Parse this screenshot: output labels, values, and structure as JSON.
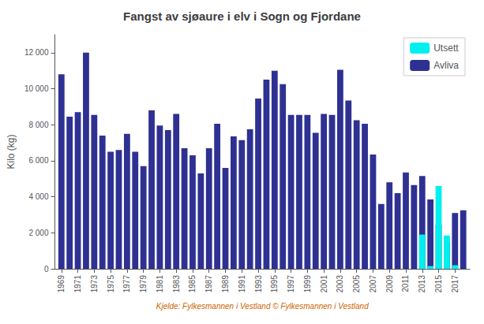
{
  "chart_data": {
    "type": "bar",
    "title": "Fangst av sjøaure i elv i Sogn og Fjordane",
    "xlabel": "Kjelde: Fylkesmannen i Vestland © Fylkesmannen i Vestland",
    "ylabel": "Kilo (kg)",
    "x": [
      1969,
      1970,
      1971,
      1972,
      1973,
      1974,
      1975,
      1976,
      1977,
      1978,
      1979,
      1980,
      1981,
      1982,
      1983,
      1984,
      1985,
      1986,
      1987,
      1988,
      1989,
      1990,
      1991,
      1992,
      1993,
      1994,
      1995,
      1996,
      1997,
      1998,
      1999,
      2000,
      2001,
      2002,
      2003,
      2004,
      2005,
      2006,
      2007,
      2008,
      2009,
      2010,
      2011,
      2012,
      2013,
      2014,
      2015,
      2016,
      2017,
      2018
    ],
    "series": [
      {
        "name": "Avliva",
        "color": "#2E3192",
        "values": [
          10800,
          8450,
          8700,
          12000,
          8550,
          7400,
          6500,
          6600,
          7500,
          6500,
          5700,
          8800,
          7950,
          7700,
          8600,
          6700,
          6300,
          5300,
          6700,
          8050,
          5600,
          7350,
          7150,
          7750,
          9450,
          10500,
          11000,
          10250,
          8550,
          8550,
          8550,
          7550,
          8600,
          8550,
          11050,
          9350,
          8250,
          8050,
          6350,
          3600,
          4800,
          4200,
          5350,
          4650,
          5150,
          3850,
          2450,
          1500,
          3100,
          3250
        ]
      },
      {
        "name": "Utsett",
        "color": "#00EFEF",
        "values": [
          0,
          0,
          0,
          0,
          0,
          0,
          0,
          0,
          0,
          0,
          0,
          0,
          0,
          0,
          0,
          0,
          0,
          0,
          0,
          0,
          0,
          0,
          0,
          0,
          0,
          0,
          0,
          0,
          0,
          0,
          0,
          0,
          0,
          0,
          0,
          0,
          0,
          0,
          0,
          0,
          0,
          0,
          0,
          0,
          1900,
          150,
          4600,
          1850,
          200,
          0
        ]
      }
    ],
    "stacked": true,
    "xlim": [
      1968.2,
      2018.8
    ],
    "xticks": [
      1969,
      1971,
      1973,
      1975,
      1977,
      1979,
      1981,
      1983,
      1985,
      1987,
      1989,
      1991,
      1993,
      1995,
      1997,
      1999,
      2001,
      2003,
      2005,
      2007,
      2009,
      2011,
      2013,
      2015,
      2017
    ],
    "ylim": [
      0,
      13000
    ],
    "yticks": [
      0,
      {
        "value": 2000,
        "label": "2 000"
      },
      {
        "value": 4000,
        "label": "4 000"
      },
      {
        "value": 6000,
        "label": "6 000"
      },
      {
        "value": 8000,
        "label": "8 000"
      },
      {
        "value": 10000,
        "label": "10 000"
      },
      {
        "value": 12000,
        "label": "12 000"
      }
    ],
    "grid": false,
    "legend": "upper right"
  }
}
